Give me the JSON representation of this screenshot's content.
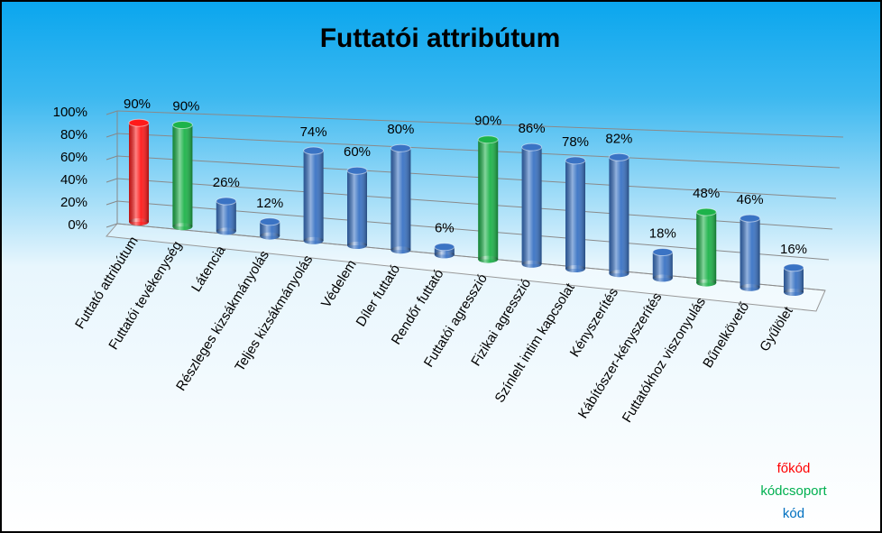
{
  "chart_data": {
    "type": "bar",
    "title": "Futtatói attribútum",
    "categories": [
      "Futtató attribútum",
      "Futtatói tevékenység",
      "Látencia",
      "Részleges kizsákmányolás",
      "Teljes kizsákmányolás",
      "Védelem",
      "Díler futtató",
      "Rendőr futtató",
      "Futtatói agresszió",
      "Fizikai agresszió",
      "Színlelt intim kapcsolat",
      "Kényszerítés",
      "Kábítószer-kényszerítés",
      "Futtatókhoz viszonyulás",
      "Bűnelkövető",
      "Gyűlölet"
    ],
    "values": [
      90,
      90,
      26,
      12,
      74,
      60,
      80,
      6,
      90,
      86,
      78,
      82,
      18,
      48,
      46,
      16
    ],
    "value_labels": [
      "90%",
      "90%",
      "26%",
      "12%",
      "74%",
      "60%",
      "80%",
      "6%",
      "90%",
      "86%",
      "78%",
      "82%",
      "18%",
      "48%",
      "46%",
      "16%"
    ],
    "colors": [
      "#ff1a1a",
      "#1db34a",
      "#3a73c4",
      "#3a73c4",
      "#3a73c4",
      "#3a73c4",
      "#3a73c4",
      "#3a73c4",
      "#1db34a",
      "#3a73c4",
      "#3a73c4",
      "#3a73c4",
      "#3a73c4",
      "#1db34a",
      "#3a73c4",
      "#3a73c4"
    ],
    "ylim": [
      0,
      100
    ],
    "yticks": [
      {
        "value": 0,
        "label": "0%"
      },
      {
        "value": 20,
        "label": "20%"
      },
      {
        "value": 40,
        "label": "40%"
      },
      {
        "value": 60,
        "label": "60%"
      },
      {
        "value": 80,
        "label": "80%"
      },
      {
        "value": 100,
        "label": "100%"
      }
    ],
    "grid": true,
    "legend": [
      {
        "label": "főkód",
        "color": "#ff0000"
      },
      {
        "label": "kódcsoport",
        "color": "#00b050"
      },
      {
        "label": "kód",
        "color": "#0070c0"
      }
    ]
  }
}
